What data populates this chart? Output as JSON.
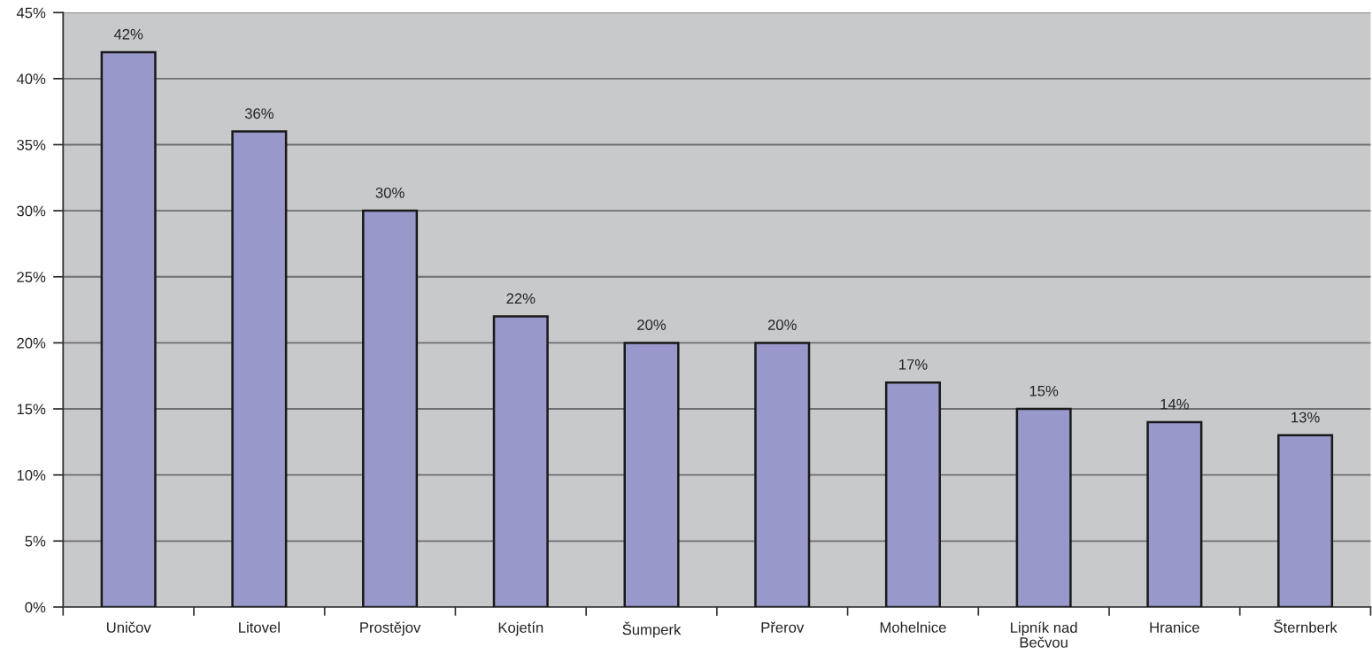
{
  "chart_data": {
    "type": "bar",
    "categories": [
      "Uničov",
      "Litovel",
      "Prostějov",
      "Kojetín",
      "Šumperk",
      "Přerov",
      "Mohelnice",
      "Lipník nad\nBečvou",
      "Hranice",
      "Šternberk"
    ],
    "values": [
      42,
      36,
      30,
      22,
      20,
      20,
      17,
      15,
      14,
      13
    ],
    "value_labels": [
      "42%",
      "36%",
      "30%",
      "22%",
      "20%",
      "20%",
      "17%",
      "15%",
      "14%",
      "13%"
    ],
    "color": "#9898cb",
    "ylim": [
      0,
      45
    ],
    "yticks": [
      {
        "value": 0,
        "label": "0%"
      },
      {
        "value": 5,
        "label": "5%"
      },
      {
        "value": 10,
        "label": "10%"
      },
      {
        "value": 15,
        "label": "15%"
      },
      {
        "value": 20,
        "label": "20%"
      },
      {
        "value": 25,
        "label": "25%"
      },
      {
        "value": 30,
        "label": "30%"
      },
      {
        "value": 35,
        "label": "35%"
      },
      {
        "value": 40,
        "label": "40%"
      },
      {
        "value": 45,
        "label": "45%"
      }
    ],
    "grid": "y",
    "legend": false
  }
}
